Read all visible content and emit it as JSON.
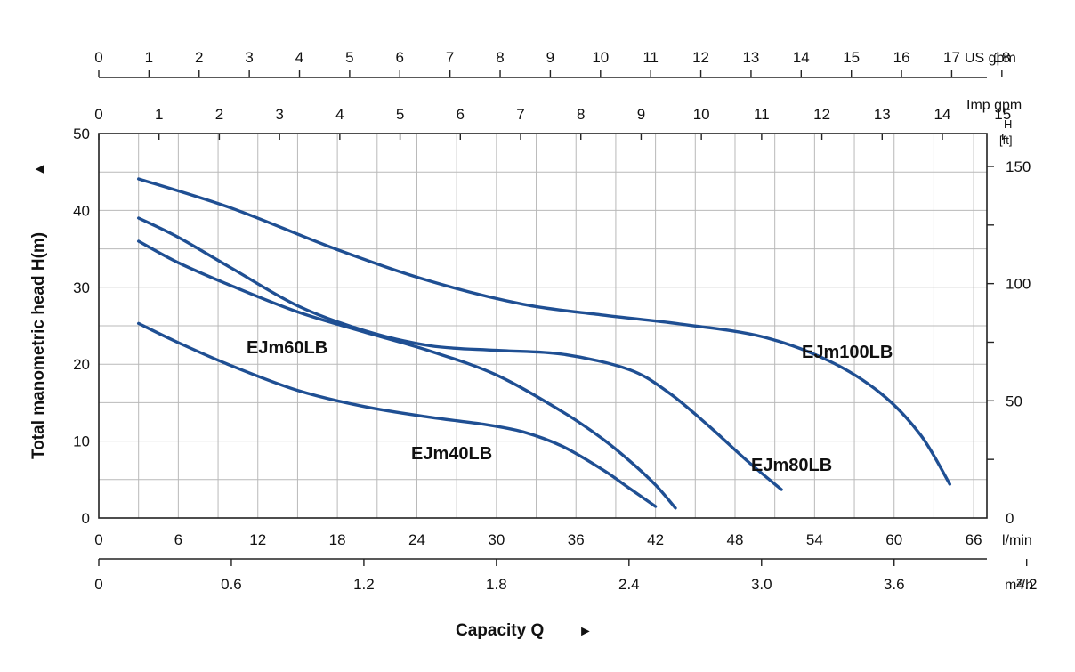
{
  "chart_data": {
    "type": "line",
    "title": "",
    "xlabel": "Capacity Q",
    "ylabel": "Total manometric head H(m)",
    "colors": {
      "curve": "#1f4f93",
      "grid": "#b9b9b9",
      "text": "#111111"
    },
    "x_axis": {
      "unit": "l/min",
      "range": [
        0,
        67
      ],
      "ticks": [
        0,
        6,
        12,
        18,
        24,
        30,
        36,
        42,
        48,
        54,
        60,
        66
      ]
    },
    "y_axis": {
      "unit": "m",
      "range": [
        0,
        50
      ],
      "ticks": [
        0,
        10,
        20,
        30,
        40,
        50
      ]
    },
    "y_axis_right": {
      "unit": "[ft]",
      "title": "H",
      "factor": 3.2808,
      "ticks": [
        0,
        50,
        100,
        150
      ]
    },
    "x_axis_m3h": {
      "unit": "m³/h",
      "factor": 0.06,
      "ticks": [
        "0",
        "0.6",
        "1.2",
        "1.8",
        "2.4",
        "3.0",
        "3.6",
        "4.2"
      ]
    },
    "x_axis_us_gpm": {
      "unit": "US gpm",
      "factor": 3.785,
      "ticks": [
        0,
        1,
        2,
        3,
        4,
        5,
        6,
        7,
        8,
        9,
        10,
        11,
        12,
        13,
        14,
        15,
        16,
        17,
        18
      ]
    },
    "x_axis_imp_gpm": {
      "unit": "Imp gpm",
      "factor": 4.546,
      "ticks": [
        0,
        1,
        2,
        3,
        4,
        5,
        6,
        7,
        8,
        9,
        10,
        11,
        12,
        13,
        14,
        15
      ]
    },
    "series": [
      {
        "name": "EJm40LB",
        "x": [
          3,
          6,
          10,
          15,
          20,
          25,
          29,
          32,
          35,
          38,
          40,
          42
        ],
        "y": [
          25.3,
          22.8,
          19.8,
          16.6,
          14.5,
          13.1,
          12.2,
          11.2,
          9.3,
          6.3,
          3.9,
          1.5
        ]
      },
      {
        "name": "EJm60LB",
        "x": [
          3,
          6,
          10,
          15,
          20,
          25,
          30,
          35,
          38,
          40,
          42,
          43.5
        ],
        "y": [
          36,
          33.2,
          30.2,
          26.8,
          24.2,
          21.7,
          18.6,
          13.8,
          10.3,
          7.5,
          4.3,
          1.3
        ]
      },
      {
        "name": "EJm80LB",
        "x": [
          3,
          6,
          10,
          15,
          20,
          25,
          30,
          35,
          40,
          43,
          46,
          49,
          51.5
        ],
        "y": [
          39,
          36.5,
          32.5,
          27.6,
          24.4,
          22.4,
          21.8,
          21.3,
          19.3,
          16.3,
          12,
          7.3,
          3.7
        ]
      },
      {
        "name": "EJm100LB",
        "x": [
          3,
          10,
          18,
          25,
          32,
          38,
          44,
          50,
          55,
          59,
          62,
          64.2
        ],
        "y": [
          44.1,
          40.3,
          34.9,
          30.8,
          27.8,
          26.4,
          25.2,
          23.6,
          20.5,
          16.2,
          10.8,
          4.4
        ]
      }
    ],
    "curve_labels": [
      "EJm40LB",
      "EJm60LB",
      "EJm80LB",
      "EJm100LB"
    ],
    "axis_arrows": {
      "y": "▲",
      "x": "►"
    }
  }
}
